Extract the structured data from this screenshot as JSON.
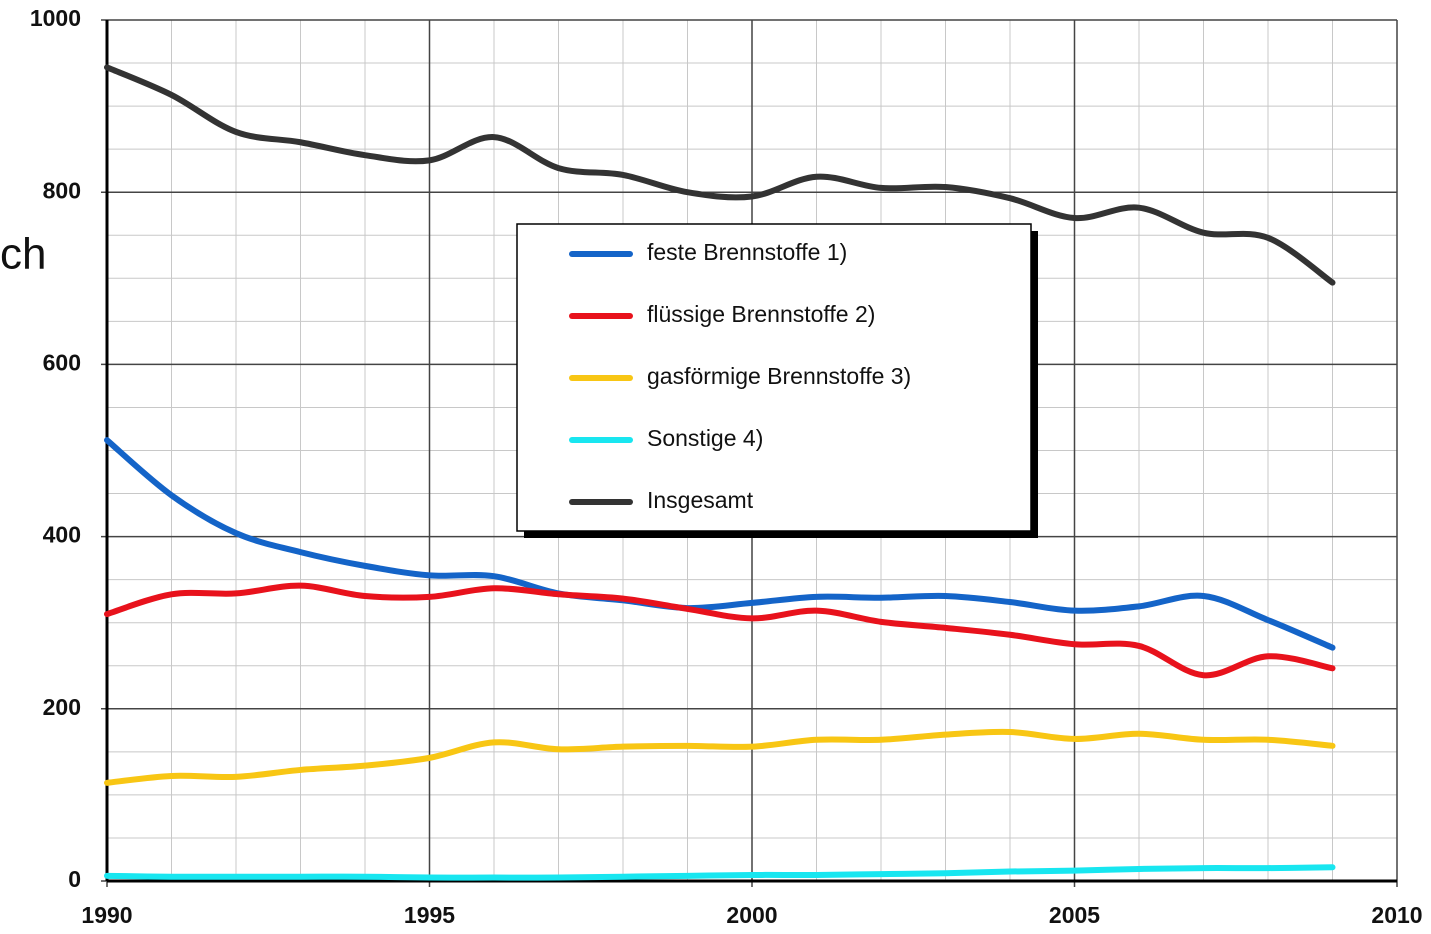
{
  "chart_data": {
    "type": "line",
    "annotation": "ch",
    "x": [
      1990,
      1991,
      1992,
      1993,
      1994,
      1995,
      1996,
      1997,
      1998,
      1999,
      2000,
      2001,
      2002,
      2003,
      2004,
      2005,
      2006,
      2007,
      2008,
      2009
    ],
    "series": [
      {
        "name": "feste Brennstoffe 1)",
        "color": "#1464c8",
        "values": [
          512,
          448,
          404,
          382,
          366,
          355,
          354,
          334,
          326,
          317,
          323,
          330,
          329,
          331,
          324,
          314,
          319,
          331,
          303,
          271
        ]
      },
      {
        "name": "flüssige Brennstoffe 2)",
        "color": "#e8121c",
        "values": [
          310,
          333,
          334,
          343,
          331,
          330,
          340,
          333,
          328,
          316,
          305,
          314,
          301,
          294,
          286,
          275,
          273,
          239,
          261,
          247
        ]
      },
      {
        "name": "gasförmige Brennstoffe 3)",
        "color": "#f8c614",
        "values": [
          114,
          122,
          121,
          129,
          134,
          143,
          161,
          153,
          156,
          157,
          156,
          164,
          164,
          170,
          173,
          165,
          171,
          164,
          164,
          157
        ]
      },
      {
        "name": "Sonstige 4)",
        "color": "#18e6f0",
        "values": [
          6,
          5,
          5,
          5,
          5,
          4,
          4,
          4,
          5,
          6,
          7,
          7,
          8,
          9,
          11,
          12,
          14,
          15,
          15,
          16
        ]
      },
      {
        "name": "Insgesamt",
        "color": "#333333",
        "values": [
          945,
          913,
          870,
          858,
          843,
          837,
          864,
          828,
          820,
          800,
          795,
          818,
          805,
          806,
          793,
          770,
          782,
          753,
          747,
          695
        ]
      }
    ],
    "xlim": [
      1990,
      2010
    ],
    "xticks": [
      1990,
      1995,
      2000,
      2005,
      2010
    ],
    "ylim": [
      0,
      1000
    ],
    "yticks": [
      0,
      200,
      400,
      600,
      800,
      1000
    ],
    "x_minor_grid": [
      1991,
      1992,
      1993,
      1994,
      1996,
      1997,
      1998,
      1999,
      2001,
      2002,
      2003,
      2004,
      2006,
      2007,
      2008,
      2009
    ],
    "y_minor_grid": [
      50,
      100,
      150,
      250,
      300,
      350,
      450,
      500,
      550,
      650,
      700,
      750,
      850,
      900,
      950
    ],
    "grid": true,
    "legend": "center"
  }
}
